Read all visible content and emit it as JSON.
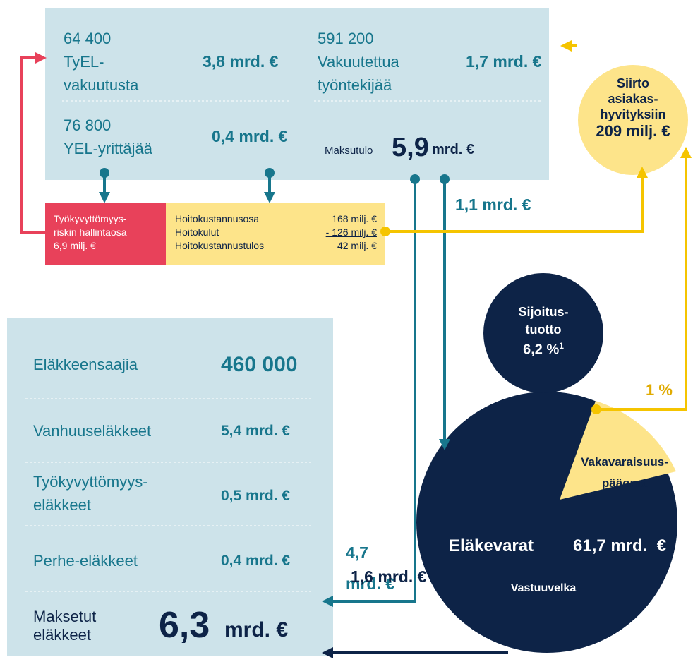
{
  "contributions": {
    "tyel": {
      "count": "64 400",
      "label": [
        "TyEL-",
        "vakuutusta"
      ],
      "amount": "3,8 mrd. €"
    },
    "employees": {
      "count": "591 200",
      "label": [
        "Vakuutettua",
        "työntekijää"
      ],
      "amount": "1,7 mrd. €"
    },
    "yel": {
      "count": "76 800",
      "label": [
        "YEL-yrittäjää"
      ],
      "amount": "0,4 mrd. €"
    },
    "total": {
      "label": "Maksutulo",
      "value": "5,9",
      "unit": "mrd. €"
    }
  },
  "transfer": {
    "label": [
      "Siirto",
      "asiakas-",
      "hyvityksiin"
    ],
    "amount": "209 milj. €"
  },
  "risk_part": {
    "label": [
      "Työkyvyttömyys-",
      "riskin hallintaosa"
    ],
    "amount": "6,9 milj. €"
  },
  "admin": {
    "rows": [
      [
        "Hoitokustannusosa",
        "168 milj. €"
      ],
      [
        "Hoitokulut",
        "- 126 milj. €"
      ],
      [
        "Hoitokustannustulos",
        "42 milj. €"
      ]
    ]
  },
  "flows": {
    "to_assets": "1,1 mrd. €",
    "from_contributions": [
      "4,7",
      "mrd. €"
    ],
    "from_assets": "1,6 mrd. €",
    "solvency_share": "1 %"
  },
  "pensions": {
    "rows": [
      {
        "label": [
          "Eläkkeensaajia"
        ],
        "value": "460 000"
      },
      {
        "label": [
          "Vanhuuseläkkeet"
        ],
        "value": "5,4 mrd. €"
      },
      {
        "label": [
          "Työkyvyttömyys-",
          "eläkkeet"
        ],
        "value": "0,5 mrd. €"
      },
      {
        "label": [
          "Perhe-eläkkeet"
        ],
        "value": "0,4 mrd. €"
      }
    ],
    "total": {
      "label": [
        "Maksetut",
        "eläkkeet"
      ],
      "value": "6,3",
      "unit": "mrd. €"
    }
  },
  "investment": {
    "label": [
      "Sijoitus-",
      "tuotto"
    ],
    "value": "6,2 %",
    "footnote": "1"
  },
  "assets": {
    "solvency": [
      "Vakavaraisuus-",
      "pääoma"
    ],
    "title": "Eläkevarat",
    "amount": "61,7 mrd.  €",
    "liability": "Vastuuvelka"
  }
}
